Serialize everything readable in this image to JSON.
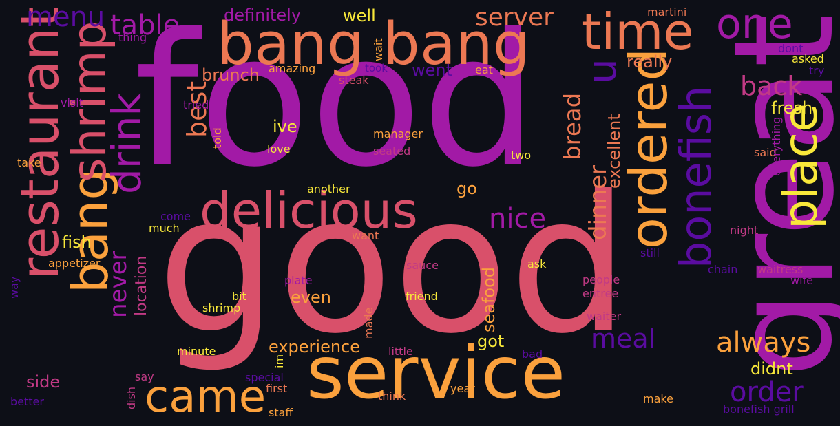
{
  "palette": {
    "background": "#0d0f17",
    "deep_purple": "#5a0ca0",
    "purple": "#a21aa6",
    "magenta": "#c13a85",
    "pink": "#d9506a",
    "coral": "#ec7853",
    "orange": "#fba13d",
    "yellow": "#f8e83a"
  },
  "words": [
    {
      "text": "food",
      "color": "purple"
    },
    {
      "text": "good",
      "color": "pink"
    },
    {
      "text": "service",
      "color": "orange"
    },
    {
      "text": "great",
      "color": "purple"
    },
    {
      "text": "bang bang",
      "color": "coral"
    },
    {
      "text": "restaurant",
      "color": "pink"
    },
    {
      "text": "time",
      "color": "coral"
    },
    {
      "text": "delicious",
      "color": "pink"
    },
    {
      "text": "bang",
      "color": "orange"
    },
    {
      "text": "shrimp",
      "color": "pink"
    },
    {
      "text": "ordered",
      "color": "orange"
    },
    {
      "text": "place",
      "color": "yellow"
    },
    {
      "text": "bonefish",
      "color": "deep_purple"
    },
    {
      "text": "came",
      "color": "orange"
    },
    {
      "text": "one",
      "color": "purple"
    },
    {
      "text": "u",
      "color": "deep_purple"
    },
    {
      "text": "drink",
      "color": "purple"
    },
    {
      "text": "menu",
      "color": "deep_purple"
    },
    {
      "text": "table",
      "color": "purple"
    },
    {
      "text": "server",
      "color": "coral"
    },
    {
      "text": "always",
      "color": "orange"
    },
    {
      "text": "order",
      "color": "deep_purple"
    },
    {
      "text": "meal",
      "color": "deep_purple"
    },
    {
      "text": "nice",
      "color": "purple"
    },
    {
      "text": "back",
      "color": "magenta"
    },
    {
      "text": "best",
      "color": "coral"
    },
    {
      "text": "dinner",
      "color": "coral"
    },
    {
      "text": "bread",
      "color": "coral"
    },
    {
      "text": "never",
      "color": "purple"
    },
    {
      "text": "definitely",
      "color": "purple"
    },
    {
      "text": "well",
      "color": "yellow"
    },
    {
      "text": "experience",
      "color": "orange"
    },
    {
      "text": "location",
      "color": "magenta"
    },
    {
      "text": "seafood",
      "color": "orange"
    },
    {
      "text": "excellent",
      "color": "coral"
    },
    {
      "text": "fresh",
      "color": "yellow"
    },
    {
      "text": "really",
      "color": "coral"
    },
    {
      "text": "brunch",
      "color": "coral"
    },
    {
      "text": "went",
      "color": "deep_purple"
    },
    {
      "text": "even",
      "color": "orange"
    },
    {
      "text": "ive",
      "color": "yellow"
    },
    {
      "text": "go",
      "color": "orange"
    },
    {
      "text": "got",
      "color": "yellow"
    },
    {
      "text": "side",
      "color": "magenta"
    },
    {
      "text": "fish",
      "color": "yellow"
    },
    {
      "text": "didnt",
      "color": "yellow"
    },
    {
      "text": "amazing",
      "color": "orange"
    },
    {
      "text": "steak",
      "color": "pink"
    },
    {
      "text": "took",
      "color": "deep_purple"
    },
    {
      "text": "eat",
      "color": "orange"
    },
    {
      "text": "wait",
      "color": "orange"
    },
    {
      "text": "martini",
      "color": "coral"
    },
    {
      "text": "dont",
      "color": "deep_purple"
    },
    {
      "text": "asked",
      "color": "yellow"
    },
    {
      "text": "try",
      "color": "deep_purple"
    },
    {
      "text": "thing",
      "color": "purple"
    },
    {
      "text": "visit",
      "color": "purple"
    },
    {
      "text": "tried",
      "color": "purple"
    },
    {
      "text": "told",
      "color": "orange"
    },
    {
      "text": "manager",
      "color": "orange"
    },
    {
      "text": "seated",
      "color": "magenta"
    },
    {
      "text": "love",
      "color": "yellow"
    },
    {
      "text": "two",
      "color": "yellow"
    },
    {
      "text": "said",
      "color": "coral"
    },
    {
      "text": "everything",
      "color": "purple"
    },
    {
      "text": "take",
      "color": "orange"
    },
    {
      "text": "another",
      "color": "yellow"
    },
    {
      "text": "come",
      "color": "deep_purple"
    },
    {
      "text": "much",
      "color": "yellow"
    },
    {
      "text": "want",
      "color": "coral"
    },
    {
      "text": "night",
      "color": "magenta"
    },
    {
      "text": "still",
      "color": "deep_purple"
    },
    {
      "text": "chain",
      "color": "deep_purple"
    },
    {
      "text": "waitress",
      "color": "magenta"
    },
    {
      "text": "wife",
      "color": "purple"
    },
    {
      "text": "appetizer",
      "color": "orange"
    },
    {
      "text": "sauce",
      "color": "magenta"
    },
    {
      "text": "ask",
      "color": "yellow"
    },
    {
      "text": "plate",
      "color": "purple"
    },
    {
      "text": "people",
      "color": "magenta"
    },
    {
      "text": "entree",
      "color": "magenta"
    },
    {
      "text": "way",
      "color": "deep_purple"
    },
    {
      "text": "bit",
      "color": "yellow"
    },
    {
      "text": "shrimp",
      "color": "yellow"
    },
    {
      "text": "friend",
      "color": "yellow"
    },
    {
      "text": "waiter",
      "color": "magenta"
    },
    {
      "text": "made",
      "color": "coral"
    },
    {
      "text": "minute",
      "color": "yellow"
    },
    {
      "text": "little",
      "color": "magenta"
    },
    {
      "text": "bad",
      "color": "deep_purple"
    },
    {
      "text": "im",
      "color": "yellow"
    },
    {
      "text": "say",
      "color": "magenta"
    },
    {
      "text": "special",
      "color": "deep_purple"
    },
    {
      "text": "first",
      "color": "coral"
    },
    {
      "text": "year",
      "color": "orange"
    },
    {
      "text": "think",
      "color": "coral"
    },
    {
      "text": "make",
      "color": "orange"
    },
    {
      "text": "better",
      "color": "deep_purple"
    },
    {
      "text": "dish",
      "color": "magenta"
    },
    {
      "text": "staff",
      "color": "orange"
    },
    {
      "text": "bonefish grill",
      "color": "deep_purple"
    }
  ]
}
